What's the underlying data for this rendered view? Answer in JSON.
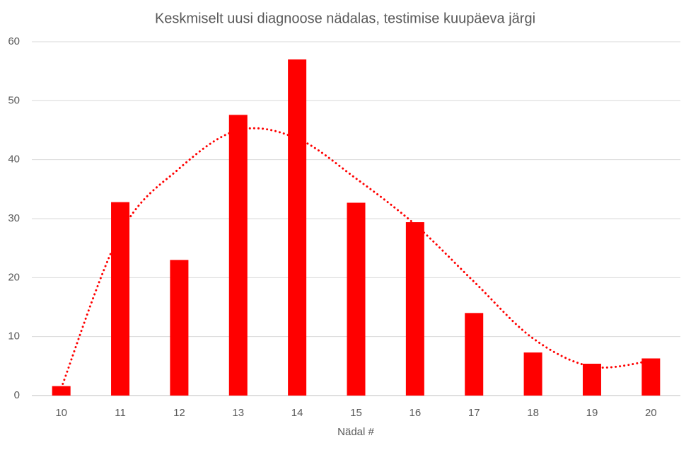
{
  "chart_data": {
    "type": "bar",
    "title": "Keskmiselt uusi diagnoose nädalas, testimise kuupäeva järgi",
    "x_label": "Nädal #",
    "categories": [
      "10",
      "11",
      "12",
      "13",
      "14",
      "15",
      "16",
      "17",
      "18",
      "19",
      "20"
    ],
    "values": [
      1.6,
      32.8,
      23,
      47.6,
      57,
      32.7,
      29.4,
      14,
      7.3,
      5.4,
      6.3
    ],
    "color": "#ff0000",
    "trendline": {
      "values": [
        1.3,
        27.5,
        38.5,
        45,
        43.6,
        36.8,
        29,
        19.3,
        9.7,
        4.9,
        5.9
      ],
      "color": "#ff0000",
      "style": "dotted"
    },
    "ylim": [
      0,
      60
    ],
    "yticks": [
      0,
      10,
      20,
      30,
      40,
      50,
      60
    ],
    "grid": true
  }
}
